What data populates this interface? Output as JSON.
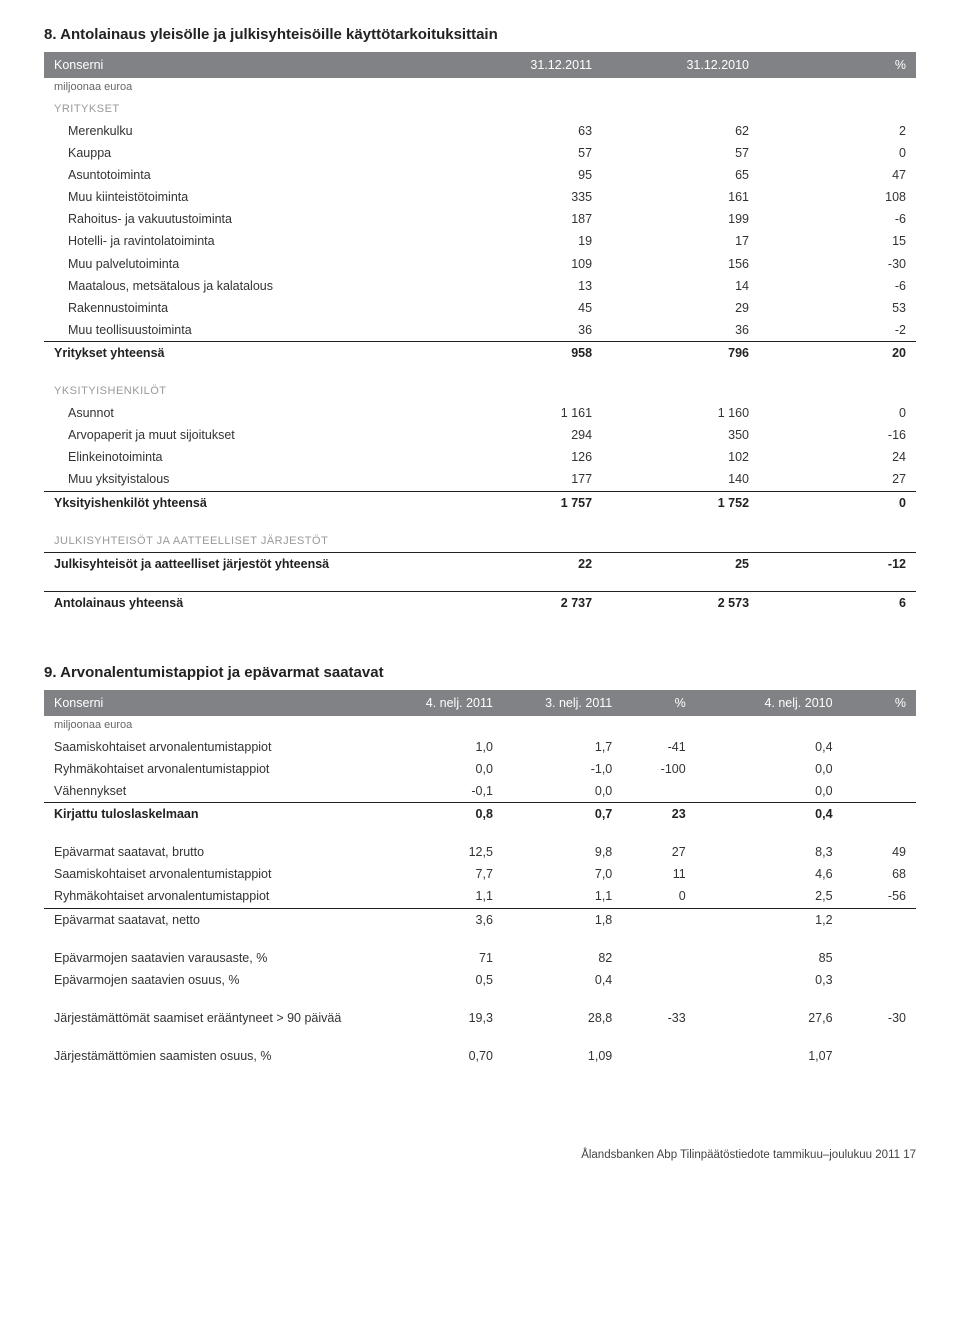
{
  "section8": {
    "title": "8. Antolainaus yleisölle ja julkisyhteisöille käyttötarkoituksittain",
    "header": {
      "c0": "Konserni",
      "c1": "31.12.2011",
      "c2": "31.12.2010",
      "c3": "%"
    },
    "currency_note": "miljoonaa euroa",
    "cat1": "YRITYKSET",
    "rows1": [
      {
        "l": "Merenkulku",
        "a": "63",
        "b": "62",
        "c": "2"
      },
      {
        "l": "Kauppa",
        "a": "57",
        "b": "57",
        "c": "0"
      },
      {
        "l": "Asuntotoiminta",
        "a": "95",
        "b": "65",
        "c": "47"
      },
      {
        "l": "Muu kiinteistötoiminta",
        "a": "335",
        "b": "161",
        "c": "108"
      },
      {
        "l": "Rahoitus- ja vakuutustoiminta",
        "a": "187",
        "b": "199",
        "c": "-6"
      },
      {
        "l": "Hotelli- ja ravintolatoiminta",
        "a": "19",
        "b": "17",
        "c": "15"
      },
      {
        "l": "Muu palvelutoiminta",
        "a": "109",
        "b": "156",
        "c": "-30"
      },
      {
        "l": "Maatalous, metsätalous ja kalatalous",
        "a": "13",
        "b": "14",
        "c": "-6"
      },
      {
        "l": "Rakennustoiminta",
        "a": "45",
        "b": "29",
        "c": "53"
      },
      {
        "l": "Muu teollisuustoiminta",
        "a": "36",
        "b": "36",
        "c": "-2"
      }
    ],
    "total1": {
      "l": "Yritykset yhteensä",
      "a": "958",
      "b": "796",
      "c": "20"
    },
    "cat2": "YKSITYISHENKILÖT",
    "rows2": [
      {
        "l": "Asunnot",
        "a": "1 161",
        "b": "1 160",
        "c": "0"
      },
      {
        "l": "Arvopaperit ja muut sijoitukset",
        "a": "294",
        "b": "350",
        "c": "-16"
      },
      {
        "l": "Elinkeinotoiminta",
        "a": "126",
        "b": "102",
        "c": "24"
      },
      {
        "l": "Muu yksityistalous",
        "a": "177",
        "b": "140",
        "c": "27"
      }
    ],
    "total2": {
      "l": "Yksityishenkilöt yhteensä",
      "a": "1 757",
      "b": "1 752",
      "c": "0"
    },
    "cat3": "JULKISYHTEISÖT JA AATTEELLISET JÄRJESTÖT",
    "total3": {
      "l": "Julkisyhteisöt ja aatteelliset järjestöt yhteensä",
      "a": "22",
      "b": "25",
      "c": "-12"
    },
    "grand": {
      "l": "Antolainaus yhteensä",
      "a": "2 737",
      "b": "2 573",
      "c": "6"
    }
  },
  "section9": {
    "title": "9. Arvonalentumistappiot ja epävarmat saatavat",
    "header": {
      "c0": "Konserni",
      "c1": "4. nelj. 2011",
      "c2": "3. nelj. 2011",
      "c3": "%",
      "c4": "4. nelj. 2010",
      "c5": "%"
    },
    "currency_note": "miljoonaa euroa",
    "block1": [
      {
        "l": "Saamiskohtaiset arvonalentumistappiot",
        "a": "1,0",
        "b": "1,7",
        "c": "-41",
        "d": "0,4",
        "e": ""
      },
      {
        "l": "Ryhmäkohtaiset arvonalentumistappiot",
        "a": "0,0",
        "b": "-1,0",
        "c": "-100",
        "d": "0,0",
        "e": ""
      },
      {
        "l": "Vähennykset",
        "a": "-0,1",
        "b": "0,0",
        "c": "",
        "d": "0,0",
        "e": ""
      }
    ],
    "total1": {
      "l": "Kirjattu tuloslaskelmaan",
      "a": "0,8",
      "b": "0,7",
      "c": "23",
      "d": "0,4",
      "e": ""
    },
    "block2": [
      {
        "l": "Epävarmat saatavat, brutto",
        "a": "12,5",
        "b": "9,8",
        "c": "27",
        "d": "8,3",
        "e": "49"
      },
      {
        "l": "Saamiskohtaiset arvonalentumistappiot",
        "a": "7,7",
        "b": "7,0",
        "c": "11",
        "d": "4,6",
        "e": "68"
      },
      {
        "l": "Ryhmäkohtaiset arvonalentumistappiot",
        "a": "1,1",
        "b": "1,1",
        "c": "0",
        "d": "2,5",
        "e": "-56"
      }
    ],
    "total2": {
      "l": "Epävarmat saatavat, netto",
      "a": "3,6",
      "b": "1,8",
      "c": "",
      "d": "1,2",
      "e": ""
    },
    "block3": [
      {
        "l": "Epävarmojen saatavien varausaste, %",
        "a": "71",
        "b": "82",
        "c": "",
        "d": "85",
        "e": ""
      },
      {
        "l": "Epävarmojen saatavien osuus, %",
        "a": "0,5",
        "b": "0,4",
        "c": "",
        "d": "0,3",
        "e": ""
      }
    ],
    "row4": {
      "l": "Järjestämättömät saamiset erääntyneet > 90 päivää",
      "a": "19,3",
      "b": "28,8",
      "c": "-33",
      "d": "27,6",
      "e": "-30"
    },
    "row5": {
      "l": "Järjestämättömien saamisten osuus, %",
      "a": "0,70",
      "b": "1,09",
      "c": "",
      "d": "1,07",
      "e": ""
    }
  },
  "footer": "Ålandsbanken Abp Tilinpäätöstiedote  tammikuu–joulukuu 2011   17",
  "colors": {
    "hdr_bg": "#808285",
    "hdr_fg": "#ffffff",
    "muted": "#999999"
  }
}
